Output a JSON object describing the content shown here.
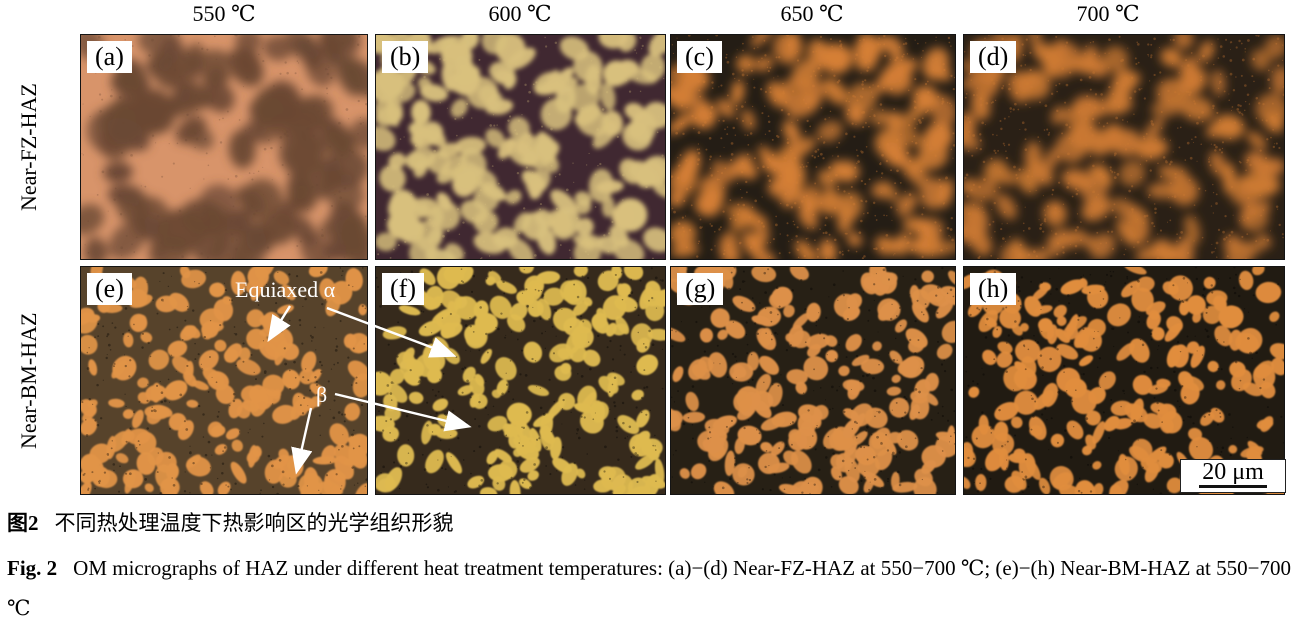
{
  "figure": {
    "temperatures": [
      "550 ℃",
      "600 ℃",
      "650 ℃",
      "700 ℃"
    ],
    "row_labels": [
      "Near-FZ-HAZ",
      "Near-BM-HAZ"
    ],
    "panels": [
      {
        "label": "(a)",
        "row": 0,
        "col": 0,
        "variant": "fuzzy-light",
        "bg": "#d8946a",
        "blob": "#6b4834"
      },
      {
        "label": "(b)",
        "row": 0,
        "col": 1,
        "variant": "fuzzy-mid",
        "bg": "#402831",
        "blob": "#d8c07d"
      },
      {
        "label": "(c)",
        "row": 0,
        "col": 2,
        "variant": "fuzzy-dark",
        "bg": "#241d15",
        "blob": "#d57f35"
      },
      {
        "label": "(d)",
        "row": 0,
        "col": 3,
        "variant": "fuzzy-dark",
        "bg": "#2a2016",
        "blob": "#cd7a33"
      },
      {
        "label": "(e)",
        "row": 1,
        "col": 0,
        "variant": "grain",
        "bg": "#57432b",
        "blob": "#e19447"
      },
      {
        "label": "(f)",
        "row": 1,
        "col": 1,
        "variant": "grain",
        "bg": "#362a1c",
        "blob": "#deba50"
      },
      {
        "label": "(g)",
        "row": 1,
        "col": 2,
        "variant": "grain",
        "bg": "#272015",
        "blob": "#dd9048"
      },
      {
        "label": "(h)",
        "row": 1,
        "col": 3,
        "variant": "grain",
        "bg": "#211b12",
        "blob": "#e08d3e"
      }
    ],
    "annotations": {
      "equiaxed_alpha": "Equiaxed α",
      "beta": "β"
    },
    "scale_bar": {
      "label": "20 μm"
    },
    "annotation_color": "#ffffff"
  },
  "caption": {
    "zh_label": "图2",
    "zh_text": "不同热处理温度下热影响区的光学组织形貌",
    "en_label": "Fig. 2",
    "en_text": "OM micrographs of HAZ under different heat treatment temperatures: (a)−(d) Near-FZ-HAZ at 550−700 ℃; (e)−(h) Near-BM-HAZ at 550−700 ℃"
  }
}
